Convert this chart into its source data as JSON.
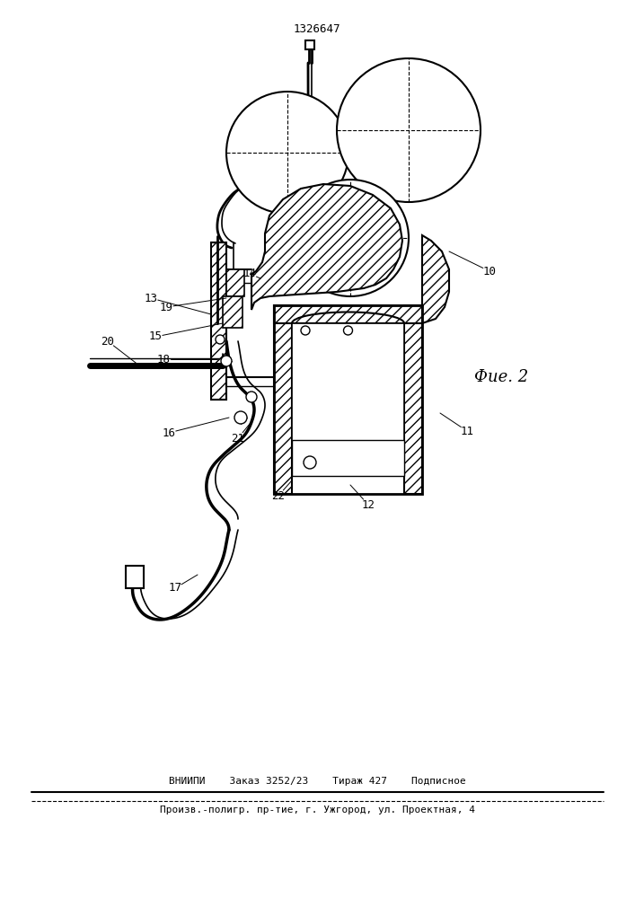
{
  "title": "1326647",
  "fig_label": "Фие. 2",
  "background_color": "#ffffff",
  "line_color": "#000000",
  "footer_line1": "ВНИИПИ    Заказ 3252/23    Тираж 427    Подписное",
  "footer_line2": "Произв.-полигр. пр-тие, г. Ужгород, ул. Проектная, 4"
}
